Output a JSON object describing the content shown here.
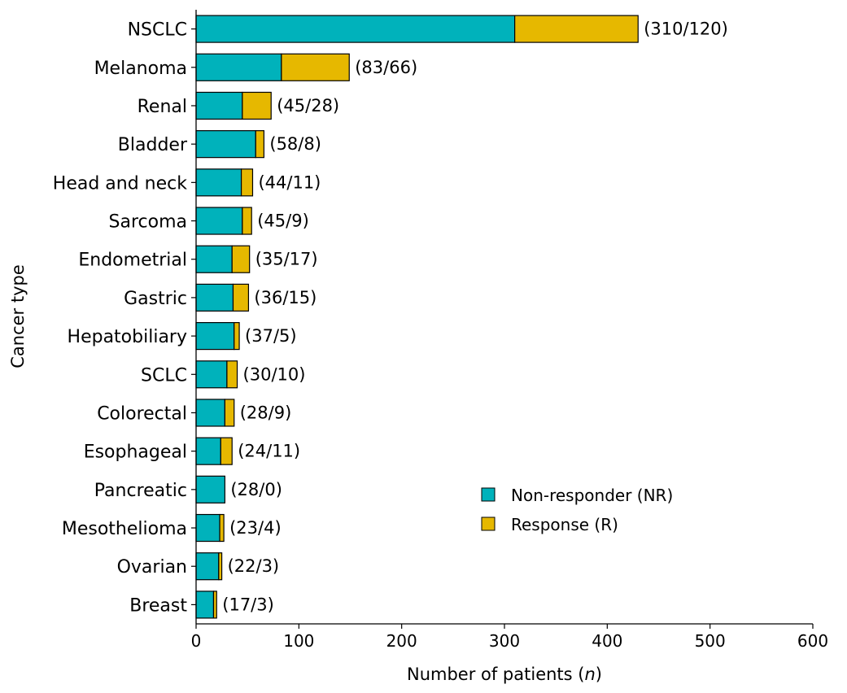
{
  "chart_data": {
    "type": "bar",
    "orientation": "horizontal",
    "stacked": true,
    "categories": [
      "NSCLC",
      "Melanoma",
      "Renal",
      "Bladder",
      "Head and neck",
      "Sarcoma",
      "Endometrial",
      "Gastric",
      "Hepatobiliary",
      "SCLC",
      "Colorectal",
      "Esophageal",
      "Pancreatic",
      "Mesothelioma",
      "Ovarian",
      "Breast"
    ],
    "series": [
      {
        "name": "Non-responder (NR)",
        "color": "#00b2bb",
        "values": [
          310,
          83,
          45,
          58,
          44,
          45,
          35,
          36,
          37,
          30,
          28,
          24,
          28,
          23,
          22,
          17
        ]
      },
      {
        "name": "Response (R)",
        "color": "#e6b800",
        "values": [
          120,
          66,
          28,
          8,
          11,
          9,
          17,
          15,
          5,
          10,
          9,
          11,
          0,
          4,
          3,
          3
        ]
      }
    ],
    "data_labels": [
      "(310/120)",
      "(83/66)",
      "(45/28)",
      "(58/8)",
      "(44/11)",
      "(45/9)",
      "(35/17)",
      "(36/15)",
      "(37/5)",
      "(30/10)",
      "(28/9)",
      "(24/11)",
      "(28/0)",
      "(23/4)",
      "(22/3)",
      "(17/3)"
    ],
    "xlabel": "Number of patients",
    "xlabel_var": "n",
    "ylabel": "Cancer type",
    "xlim": [
      0,
      600
    ],
    "xticks": [
      0,
      100,
      200,
      300,
      400,
      500,
      600
    ],
    "legend": {
      "placement": "center-right"
    },
    "grid": false
  }
}
